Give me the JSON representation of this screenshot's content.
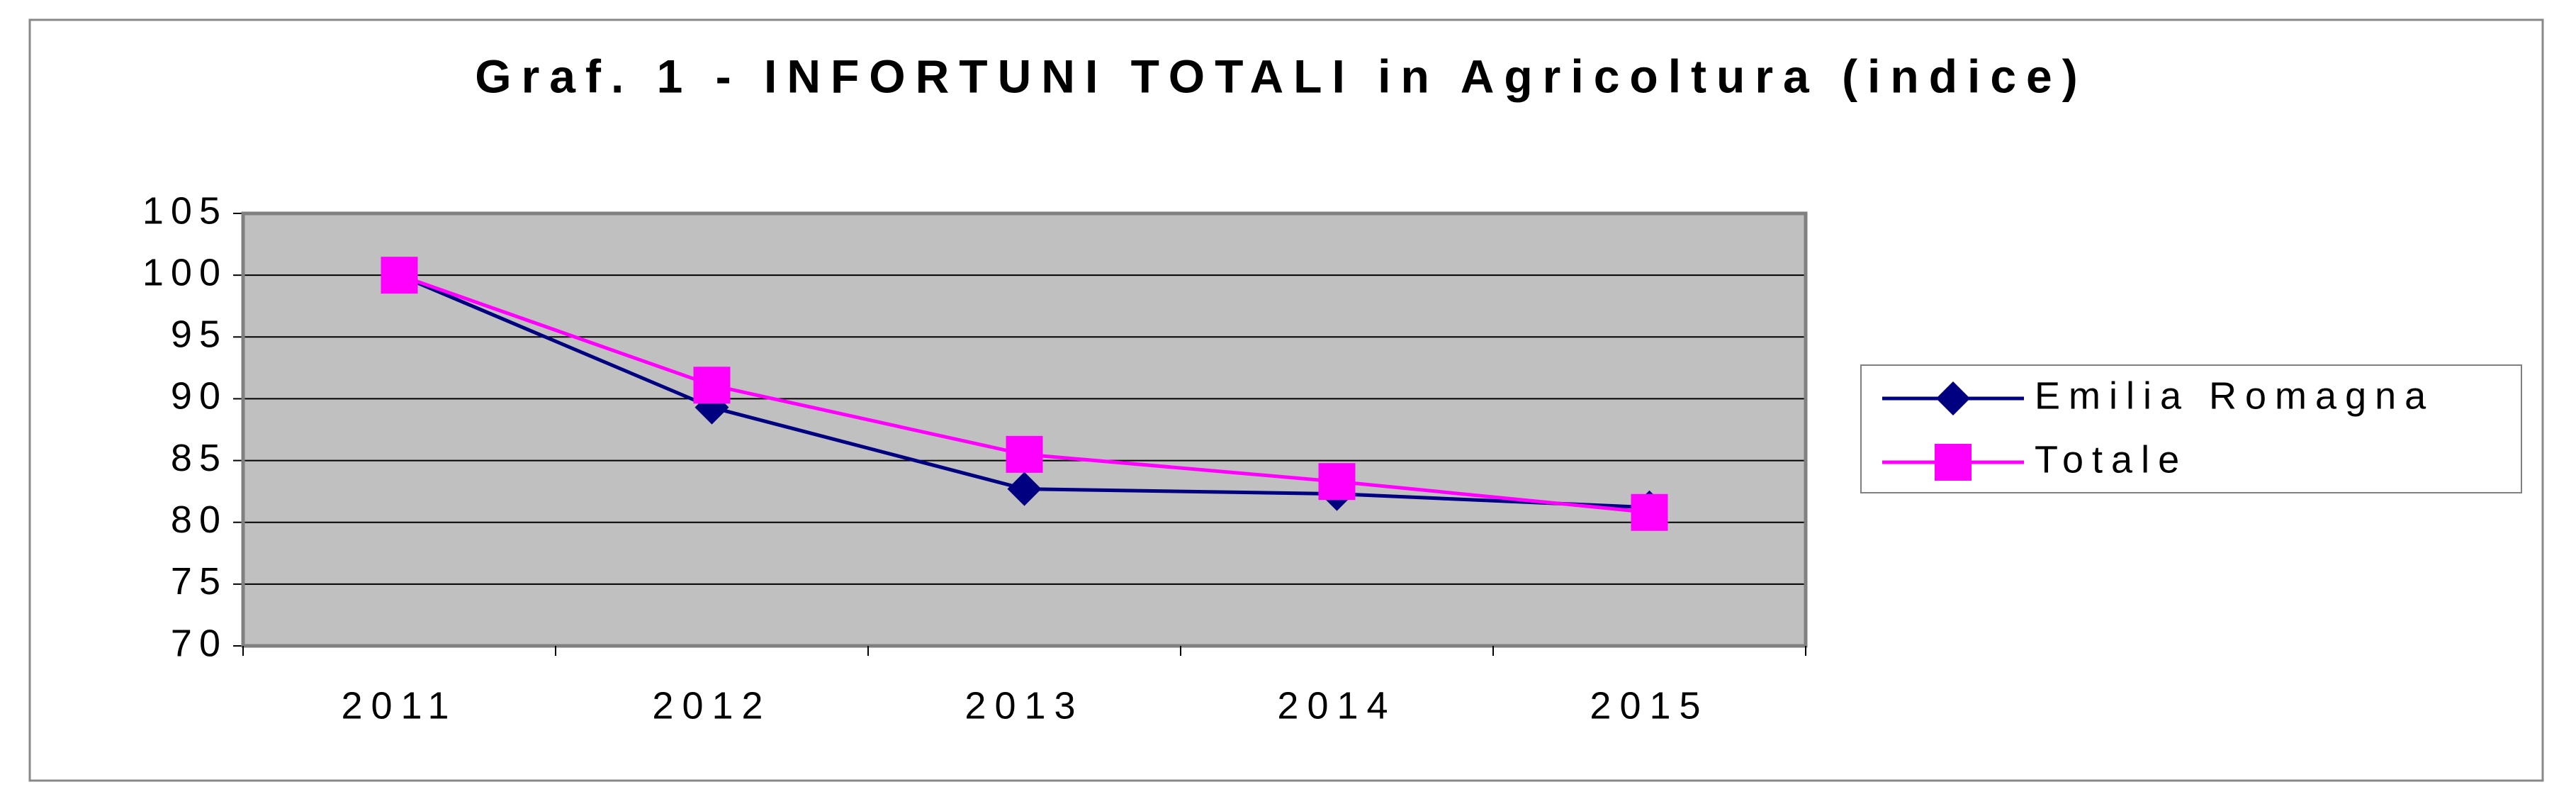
{
  "chart_data": {
    "type": "line",
    "title": "Graf. 1 - INFORTUNI TOTALI in Agricoltura (indice)",
    "categories": [
      "2011",
      "2012",
      "2013",
      "2014",
      "2015"
    ],
    "series": [
      {
        "name": "Emilia Romagna",
        "color": "#000080",
        "marker": "diamond",
        "values": [
          100,
          89.3,
          82.7,
          82.3,
          81.2
        ]
      },
      {
        "name": "Totale",
        "color": "#ff00ff",
        "marker": "square",
        "values": [
          100,
          91.1,
          85.5,
          83.3,
          80.8
        ]
      }
    ],
    "ylim": [
      70,
      105
    ],
    "yticks": [
      70,
      75,
      80,
      85,
      90,
      95,
      100,
      105
    ],
    "grid": true,
    "legend": "right"
  }
}
